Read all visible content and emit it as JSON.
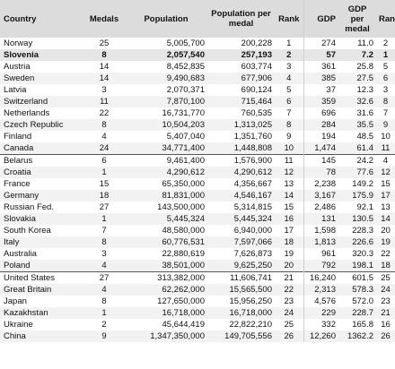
{
  "columns": {
    "country": "Country",
    "medals": "Medals",
    "population": "Population",
    "pop_per_medal": "Population per medal",
    "rank": "Rank",
    "gdp": "GDP",
    "gdp_per_medal": "GDP per medal",
    "rank2": "Rank"
  },
  "rows": [
    {
      "country": "Norway",
      "medals": "25",
      "population": "5,005,700",
      "pop_per_medal": "200,228",
      "rank": "1",
      "gdp": "274",
      "gdp_per_medal": "11.0",
      "rank2": "2"
    },
    {
      "country": "Slovenia",
      "medals": "8",
      "population": "2,057,540",
      "pop_per_medal": "257,193",
      "rank": "2",
      "gdp": "57",
      "gdp_per_medal": "7.2",
      "rank2": "1"
    },
    {
      "country": "Austria",
      "medals": "14",
      "population": "8,452,835",
      "pop_per_medal": "603,774",
      "rank": "3",
      "gdp": "361",
      "gdp_per_medal": "25.8",
      "rank2": "5"
    },
    {
      "country": "Sweden",
      "medals": "14",
      "population": "9,490,683",
      "pop_per_medal": "677,906",
      "rank": "4",
      "gdp": "385",
      "gdp_per_medal": "27.5",
      "rank2": "6"
    },
    {
      "country": "Latvia",
      "medals": "3",
      "population": "2,070,371",
      "pop_per_medal": "690,124",
      "rank": "5",
      "gdp": "37",
      "gdp_per_medal": "12.3",
      "rank2": "3"
    },
    {
      "country": "Switzerland",
      "medals": "11",
      "population": "7,870,100",
      "pop_per_medal": "715,464",
      "rank": "6",
      "gdp": "359",
      "gdp_per_medal": "32.6",
      "rank2": "8"
    },
    {
      "country": "Netherlands",
      "medals": "22",
      "population": "16,731,770",
      "pop_per_medal": "760,535",
      "rank": "7",
      "gdp": "696",
      "gdp_per_medal": "31.6",
      "rank2": "7"
    },
    {
      "country": "Czech Republic",
      "medals": "8",
      "population": "10,504,203",
      "pop_per_medal": "1,313,025",
      "rank": "8",
      "gdp": "284",
      "gdp_per_medal": "35.5",
      "rank2": "9"
    },
    {
      "country": "Finland",
      "medals": "4",
      "population": "5,407,040",
      "pop_per_medal": "1,351,760",
      "rank": "9",
      "gdp": "194",
      "gdp_per_medal": "48.5",
      "rank2": "10"
    },
    {
      "country": "Canada",
      "medals": "24",
      "population": "34,771,400",
      "pop_per_medal": "1,448,808",
      "rank": "10",
      "gdp": "1,474",
      "gdp_per_medal": "61.4",
      "rank2": "11"
    },
    {
      "country": "Belarus",
      "medals": "6",
      "population": "9,461,400",
      "pop_per_medal": "1,576,900",
      "rank": "11",
      "gdp": "145",
      "gdp_per_medal": "24.2",
      "rank2": "4"
    },
    {
      "country": "Croatia",
      "medals": "1",
      "population": "4,290,612",
      "pop_per_medal": "4,290,612",
      "rank": "12",
      "gdp": "78",
      "gdp_per_medal": "77.6",
      "rank2": "12"
    },
    {
      "country": "France",
      "medals": "15",
      "population": "65,350,000",
      "pop_per_medal": "4,356,667",
      "rank": "13",
      "gdp": "2,238",
      "gdp_per_medal": "149.2",
      "rank2": "15"
    },
    {
      "country": "Germany",
      "medals": "18",
      "population": "81,831,000",
      "pop_per_medal": "4,546,167",
      "rank": "14",
      "gdp": "3,167",
      "gdp_per_medal": "175.9",
      "rank2": "17"
    },
    {
      "country": "Russian Fed.",
      "medals": "27",
      "population": "143,500,000",
      "pop_per_medal": "5,314,815",
      "rank": "15",
      "gdp": "2,486",
      "gdp_per_medal": "92.1",
      "rank2": "13"
    },
    {
      "country": "Slovakia",
      "medals": "1",
      "population": "5,445,324",
      "pop_per_medal": "5,445,324",
      "rank": "16",
      "gdp": "131",
      "gdp_per_medal": "130.5",
      "rank2": "14"
    },
    {
      "country": "South Korea",
      "medals": "7",
      "population": "48,580,000",
      "pop_per_medal": "6,940,000",
      "rank": "17",
      "gdp": "1,598",
      "gdp_per_medal": "228.3",
      "rank2": "20"
    },
    {
      "country": "Italy",
      "medals": "8",
      "population": "60,776,531",
      "pop_per_medal": "7,597,066",
      "rank": "18",
      "gdp": "1,813",
      "gdp_per_medal": "226.6",
      "rank2": "19"
    },
    {
      "country": "Australia",
      "medals": "3",
      "population": "22,880,619",
      "pop_per_medal": "7,626,873",
      "rank": "19",
      "gdp": "961",
      "gdp_per_medal": "320.3",
      "rank2": "22"
    },
    {
      "country": "Poland",
      "medals": "4",
      "population": "38,501,000",
      "pop_per_medal": "9,625,250",
      "rank": "20",
      "gdp": "792",
      "gdp_per_medal": "198.1",
      "rank2": "18"
    },
    {
      "country": "United States",
      "medals": "27",
      "population": "313,382,000",
      "pop_per_medal": "11,606,741",
      "rank": "21",
      "gdp": "16,240",
      "gdp_per_medal": "601.5",
      "rank2": "25"
    },
    {
      "country": "Great Britain",
      "medals": "4",
      "population": "62,262,000",
      "pop_per_medal": "15,565,500",
      "rank": "22",
      "gdp": "2,313",
      "gdp_per_medal": "578.3",
      "rank2": "24"
    },
    {
      "country": "Japan",
      "medals": "8",
      "population": "127,650,000",
      "pop_per_medal": "15,956,250",
      "rank": "23",
      "gdp": "4,576",
      "gdp_per_medal": "572.0",
      "rank2": "23"
    },
    {
      "country": "Kazakhstan",
      "medals": "1",
      "population": "16,718,000",
      "pop_per_medal": "16,718,000",
      "rank": "24",
      "gdp": "229",
      "gdp_per_medal": "228.7",
      "rank2": "21"
    },
    {
      "country": "Ukraine",
      "medals": "2",
      "population": "45,644,419",
      "pop_per_medal": "22,822,210",
      "rank": "25",
      "gdp": "332",
      "gdp_per_medal": "165.8",
      "rank2": "16"
    },
    {
      "country": "China",
      "medals": "9",
      "population": "1,347,350,000",
      "pop_per_medal": "149,705,556",
      "rank": "26",
      "gdp": "12,260",
      "gdp_per_medal": "1362.2",
      "rank2": "26"
    }
  ],
  "highlight_row": 1,
  "separator_rows": [
    10,
    20
  ],
  "colors": {
    "header_bg": "#dcdcdc",
    "stripe_bg": "#f2f2f2",
    "highlight_bg": "#e6e6e6",
    "separator": "#555555"
  }
}
